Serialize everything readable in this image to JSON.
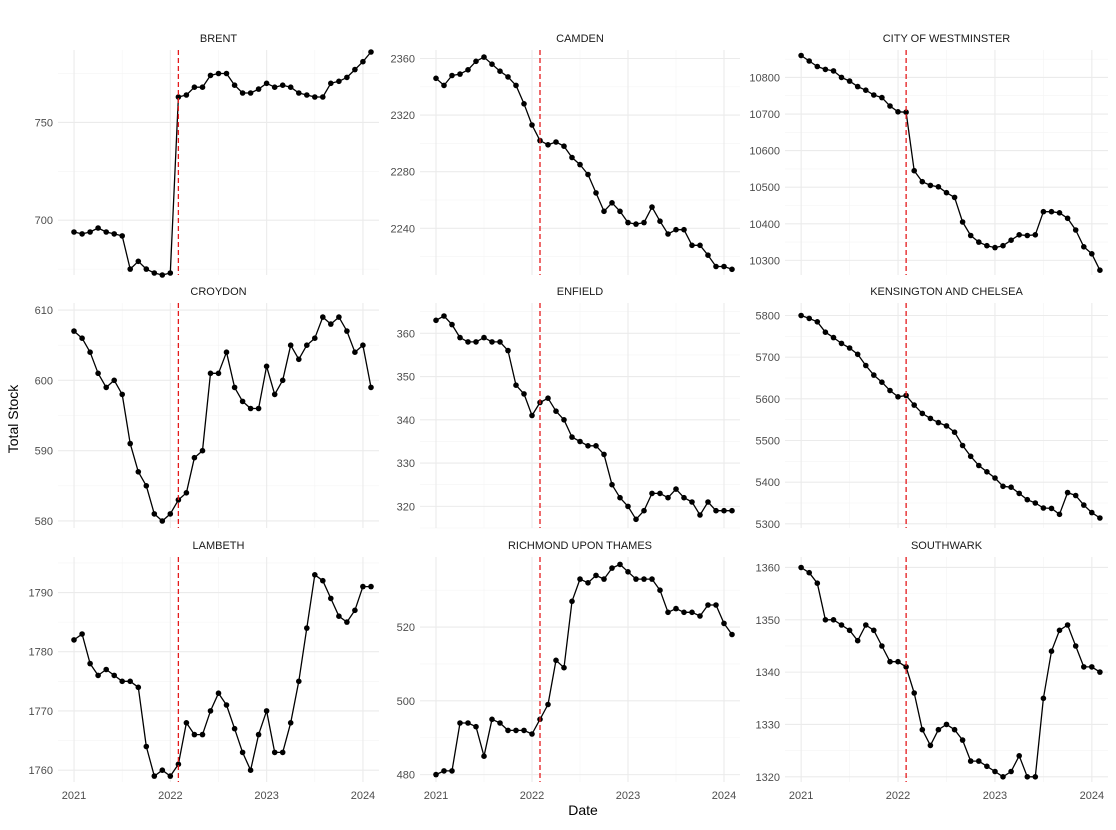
{
  "chart_data": {
    "type": "line",
    "xlabel": "Date",
    "ylabel": "Total Stock",
    "x_ticks": [
      "2021",
      "2022",
      "2023",
      "2024"
    ],
    "x_range": [
      "2020-11",
      "2024-03"
    ],
    "vline_date": "2022-02",
    "colors": {
      "line": "#000000",
      "point": "#000000",
      "vline": "#e41a1c",
      "grid_major": "#ebebeb",
      "grid_minor": "#f4f4f4",
      "strip_text": "#1a1a1a",
      "axis_text": "#4d4d4d"
    },
    "dates": [
      "2021-01",
      "2021-02",
      "2021-03",
      "2021-04",
      "2021-05",
      "2021-06",
      "2021-07",
      "2021-08",
      "2021-09",
      "2021-10",
      "2021-11",
      "2021-12",
      "2022-01",
      "2022-02",
      "2022-03",
      "2022-04",
      "2022-05",
      "2022-06",
      "2022-07",
      "2022-08",
      "2022-09",
      "2022-10",
      "2022-11",
      "2022-12",
      "2023-01",
      "2023-02",
      "2023-03",
      "2023-04",
      "2023-05",
      "2023-06",
      "2023-07",
      "2023-08",
      "2023-09",
      "2023-10",
      "2023-11",
      "2023-12",
      "2024-01",
      "2024-02"
    ],
    "panels": [
      {
        "title": "BRENT",
        "ylim": [
          672,
          787
        ],
        "y_ticks": [
          700,
          750
        ],
        "values": [
          694,
          693,
          694,
          696,
          694,
          693,
          692,
          675,
          679,
          675,
          673,
          672,
          673,
          763,
          764,
          768,
          768,
          774,
          775,
          775,
          769,
          765,
          765,
          767,
          770,
          768,
          769,
          768,
          765,
          764,
          763,
          763,
          770,
          771,
          773,
          777,
          781,
          786
        ]
      },
      {
        "title": "CAMDEN",
        "ylim": [
          2207,
          2366
        ],
        "y_ticks": [
          2240,
          2280,
          2320,
          2360
        ],
        "values": [
          2346,
          2341,
          2348,
          2349,
          2352,
          2358,
          2361,
          2356,
          2351,
          2347,
          2341,
          2328,
          2313,
          2302,
          2299,
          2301,
          2298,
          2290,
          2285,
          2278,
          2265,
          2252,
          2258,
          2252,
          2244,
          2243,
          2244,
          2255,
          2245,
          2236,
          2239,
          2239,
          2228,
          2228,
          2221,
          2213,
          2213,
          2211
        ]
      },
      {
        "title": "CITY OF WESTMINSTER",
        "ylim": [
          10260,
          10875
        ],
        "y_ticks": [
          10300,
          10400,
          10500,
          10600,
          10700,
          10800
        ],
        "values": [
          10860,
          10845,
          10830,
          10822,
          10818,
          10800,
          10790,
          10775,
          10765,
          10752,
          10745,
          10722,
          10706,
          10705,
          10545,
          10515,
          10505,
          10501,
          10485,
          10472,
          10405,
          10368,
          10350,
          10340,
          10335,
          10340,
          10355,
          10370,
          10368,
          10370,
          10433,
          10433,
          10430,
          10415,
          10383,
          10337,
          10318,
          10273
        ]
      },
      {
        "title": "CROYDON",
        "ylim": [
          579,
          611
        ],
        "y_ticks": [
          580,
          590,
          600,
          610
        ],
        "values": [
          607,
          606,
          604,
          601,
          599,
          600,
          598,
          591,
          587,
          585,
          581,
          580,
          581,
          583,
          584,
          589,
          590,
          601,
          601,
          604,
          599,
          597,
          596,
          596,
          602,
          598,
          600,
          605,
          603,
          605,
          606,
          609,
          608,
          609,
          607,
          604,
          605,
          599
        ]
      },
      {
        "title": "ENFIELD",
        "ylim": [
          315,
          367
        ],
        "y_ticks": [
          320,
          330,
          340,
          350,
          360
        ],
        "values": [
          363,
          364,
          362,
          359,
          358,
          358,
          359,
          358,
          358,
          356,
          348,
          346,
          341,
          344,
          345,
          342,
          340,
          336,
          335,
          334,
          334,
          332,
          325,
          322,
          320,
          317,
          319,
          323,
          323,
          322,
          324,
          322,
          321,
          318,
          321,
          319,
          319,
          319
        ]
      },
      {
        "title": "KENSINGTON AND CHELSEA",
        "ylim": [
          5290,
          5830
        ],
        "y_ticks": [
          5300,
          5400,
          5500,
          5600,
          5700,
          5800
        ],
        "values": [
          5800,
          5793,
          5785,
          5760,
          5747,
          5733,
          5722,
          5707,
          5680,
          5657,
          5640,
          5620,
          5605,
          5608,
          5585,
          5565,
          5553,
          5543,
          5535,
          5520,
          5488,
          5462,
          5440,
          5425,
          5410,
          5390,
          5388,
          5373,
          5358,
          5350,
          5338,
          5337,
          5323,
          5375,
          5368,
          5345,
          5327,
          5314
        ]
      },
      {
        "title": "LAMBETH",
        "ylim": [
          1758,
          1796
        ],
        "y_ticks": [
          1760,
          1770,
          1780,
          1790
        ],
        "values": [
          1782,
          1783,
          1778,
          1776,
          1777,
          1776,
          1775,
          1775,
          1774,
          1764,
          1759,
          1760,
          1759,
          1761,
          1768,
          1766,
          1766,
          1770,
          1773,
          1771,
          1767,
          1763,
          1760,
          1766,
          1770,
          1763,
          1763,
          1768,
          1775,
          1784,
          1793,
          1792,
          1789,
          1786,
          1785,
          1787,
          1791,
          1791
        ]
      },
      {
        "title": "RICHMOND UPON THAMES",
        "ylim": [
          478,
          539
        ],
        "y_ticks": [
          480,
          500,
          520
        ],
        "values": [
          480,
          481,
          481,
          494,
          494,
          493,
          485,
          495,
          494,
          492,
          492,
          492,
          491,
          495,
          499,
          511,
          509,
          527,
          533,
          532,
          534,
          533,
          536,
          537,
          535,
          533,
          533,
          533,
          530,
          524,
          525,
          524,
          524,
          523,
          526,
          526,
          521,
          518
        ]
      },
      {
        "title": "SOUTHWARK",
        "ylim": [
          1319,
          1362
        ],
        "y_ticks": [
          1320,
          1330,
          1340,
          1350,
          1360
        ],
        "values": [
          1360,
          1359,
          1357,
          1350,
          1350,
          1349,
          1348,
          1346,
          1349,
          1348,
          1345,
          1342,
          1342,
          1341,
          1336,
          1329,
          1326,
          1329,
          1330,
          1329,
          1327,
          1323,
          1323,
          1322,
          1321,
          1320,
          1321,
          1324,
          1320,
          1320,
          1335,
          1344,
          1348,
          1349,
          1345,
          1341,
          1341,
          1340
        ]
      }
    ]
  }
}
